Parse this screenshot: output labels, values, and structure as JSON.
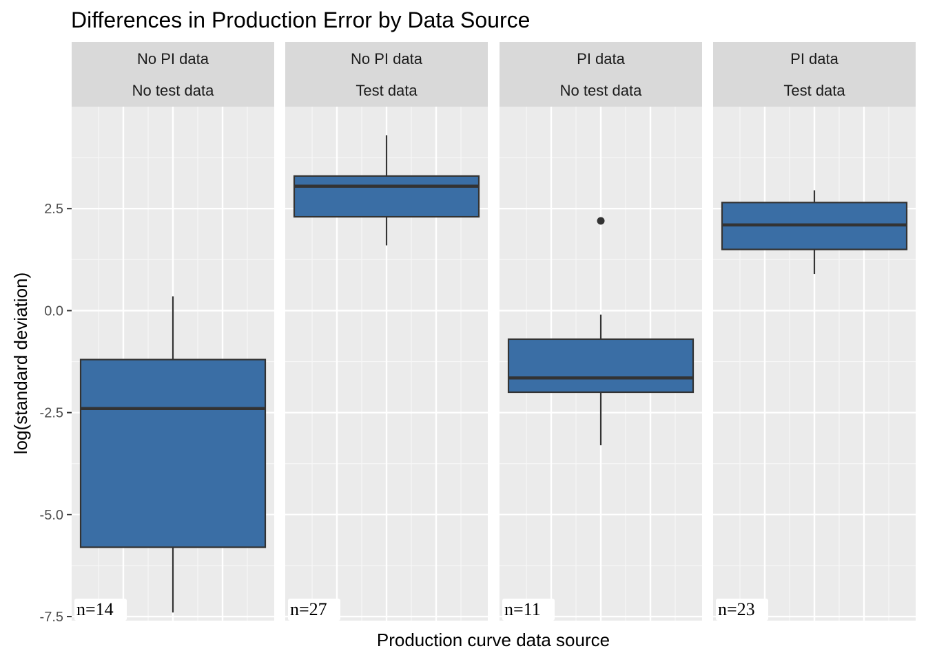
{
  "chart_data": {
    "type": "box",
    "title": "Differences in Production Error by Data Source",
    "xlabel": "Production curve data source",
    "ylabel": "log(standard deviation)",
    "ylim": [
      -7.6,
      5.0
    ],
    "y_ticks": [
      2.5,
      0.0,
      -2.5,
      -5.0,
      -7.5
    ],
    "y_tick_labels": [
      "2.5",
      "0.0",
      "-2.5",
      "-5.0",
      "-7.5"
    ],
    "grid": true,
    "fill_color": "#3a6ea5",
    "panels": [
      {
        "strip": [
          "No PI data",
          "No test data"
        ],
        "n_label": "n=14",
        "box": {
          "whisker_low": -7.4,
          "q1": -5.8,
          "median": -2.4,
          "q3": -1.2,
          "whisker_high": 0.35
        },
        "outliers": []
      },
      {
        "strip": [
          "No PI data",
          "Test data"
        ],
        "n_label": "n=27",
        "box": {
          "whisker_low": 1.6,
          "q1": 2.3,
          "median": 3.05,
          "q3": 3.3,
          "whisker_high": 4.3
        },
        "outliers": []
      },
      {
        "strip": [
          "PI data",
          "No test data"
        ],
        "n_label": "n=11",
        "box": {
          "whisker_low": -3.3,
          "q1": -2.0,
          "median": -1.65,
          "q3": -0.7,
          "whisker_high": -0.1
        },
        "outliers": [
          2.2
        ]
      },
      {
        "strip": [
          "PI data",
          "Test data"
        ],
        "n_label": "n=23",
        "box": {
          "whisker_low": 0.9,
          "q1": 1.5,
          "median": 2.1,
          "q3": 2.65,
          "whisker_high": 2.95
        },
        "outliers": []
      }
    ]
  }
}
